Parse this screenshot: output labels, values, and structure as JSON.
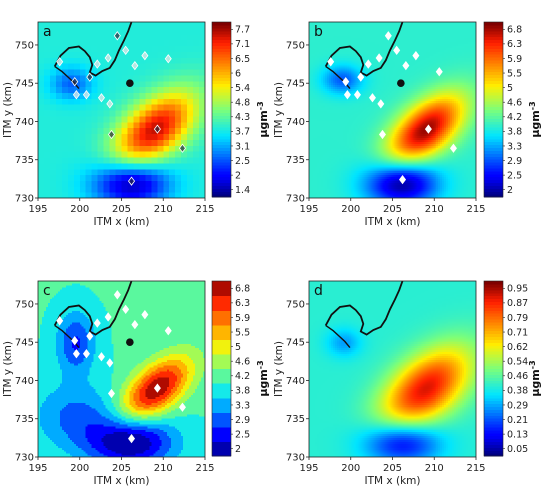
{
  "chart_data": [
    {
      "type": "heatmap",
      "panel_label": "a",
      "style": "blocky",
      "xlabel": "ITM x (km)",
      "ylabel": "ITM y (km)",
      "xlim": [
        195,
        215
      ],
      "ylim": [
        730,
        753
      ],
      "xticks": [
        "195",
        "200",
        "205",
        "210",
        "215"
      ],
      "yticks": [
        "730",
        "735",
        "740",
        "745",
        "750"
      ],
      "colorbar": {
        "unit": "μgm",
        "unit_exp": "-3",
        "ticks": [
          "7.7",
          "7.1",
          "6.5",
          "6",
          "5.4",
          "4.8",
          "4.3",
          "3.7",
          "3.1",
          "2.5",
          "2",
          "1.4"
        ],
        "min": 1.1,
        "max": 8.0
      },
      "background": 3.8,
      "features": [
        {
          "x": 209,
          "y": 739,
          "amp": 3.8,
          "sx": 4.2,
          "sy": 2.3,
          "rot": -45
        },
        {
          "x": 206,
          "y": 732,
          "amp": -2.6,
          "sx": 3.2,
          "sy": 2.2,
          "rot": 0
        },
        {
          "x": 199,
          "y": 745,
          "amp": -1.2,
          "sx": 1.8,
          "sy": 1.5,
          "rot": 0
        }
      ],
      "stations": [
        {
          "x": 206,
          "y": 745,
          "type": "site"
        },
        {
          "x": 209.3,
          "y": 739,
          "type": "diamond",
          "shade": "dark"
        },
        {
          "x": 212.3,
          "y": 736.5,
          "type": "diamond",
          "shade": "dark"
        },
        {
          "x": 206.2,
          "y": 732.2,
          "type": "diamond",
          "shade": "dark"
        },
        {
          "x": 203.8,
          "y": 738.3,
          "type": "diamond",
          "shade": "dark"
        },
        {
          "x": 204.5,
          "y": 751.2,
          "type": "diamond",
          "shade": "dark"
        },
        {
          "x": 205.5,
          "y": 749.3,
          "type": "diamond",
          "shade": "light"
        },
        {
          "x": 206.6,
          "y": 747.3,
          "type": "diamond",
          "shade": "light"
        },
        {
          "x": 203.4,
          "y": 748.3,
          "type": "diamond",
          "shade": "light"
        },
        {
          "x": 202.1,
          "y": 747.5,
          "type": "diamond",
          "shade": "light"
        },
        {
          "x": 202.6,
          "y": 743.1,
          "type": "diamond",
          "shade": "light"
        },
        {
          "x": 203.6,
          "y": 742.3,
          "type": "diamond",
          "shade": "light"
        },
        {
          "x": 200.8,
          "y": 743.5,
          "type": "diamond",
          "shade": "light"
        },
        {
          "x": 199.4,
          "y": 745.2,
          "type": "diamond",
          "shade": "dark"
        },
        {
          "x": 199.6,
          "y": 743.5,
          "type": "diamond",
          "shade": "light"
        },
        {
          "x": 197.6,
          "y": 747.8,
          "type": "diamond",
          "shade": "light"
        },
        {
          "x": 201.2,
          "y": 745.8,
          "type": "diamond",
          "shade": "dark"
        },
        {
          "x": 207.8,
          "y": 748.6,
          "type": "diamond",
          "shade": "light"
        },
        {
          "x": 210.6,
          "y": 748.2,
          "type": "diamond",
          "shade": "light"
        }
      ]
    },
    {
      "type": "heatmap",
      "panel_label": "b",
      "style": "smooth",
      "xlabel": "ITM x (km)",
      "ylabel": "ITM y (km)",
      "xlim": [
        195,
        215
      ],
      "ylim": [
        730,
        753
      ],
      "xticks": [
        "195",
        "200",
        "205",
        "210",
        "215"
      ],
      "yticks": [
        "730",
        "735",
        "740",
        "745",
        "750"
      ],
      "colorbar": {
        "unit": "μgm",
        "unit_exp": "-3",
        "ticks": [
          "6.8",
          "6.3",
          "5.9",
          "5.5",
          "5",
          "4.6",
          "4.2",
          "3.8",
          "3.3",
          "2.9",
          "2.5",
          "2"
        ],
        "min": 1.8,
        "max": 7.0
      },
      "background": 3.9,
      "features": [
        {
          "x": 209,
          "y": 739,
          "amp": 3.0,
          "sx": 4.0,
          "sy": 2.1,
          "rot": -45
        },
        {
          "x": 206,
          "y": 732,
          "amp": -2.1,
          "sx": 3.0,
          "sy": 2.1,
          "rot": 0
        },
        {
          "x": 199,
          "y": 745.5,
          "amp": -1.0,
          "sx": 1.7,
          "sy": 1.3,
          "rot": 0
        }
      ],
      "stations": [
        {
          "x": 206,
          "y": 745,
          "type": "site"
        },
        {
          "x": 209.3,
          "y": 739,
          "type": "diamond",
          "shade": "white"
        },
        {
          "x": 212.3,
          "y": 736.5,
          "type": "diamond",
          "shade": "white"
        },
        {
          "x": 206.2,
          "y": 732.4,
          "type": "diamond",
          "shade": "white"
        },
        {
          "x": 203.8,
          "y": 738.3,
          "type": "diamond",
          "shade": "white"
        },
        {
          "x": 204.5,
          "y": 751.2,
          "type": "diamond",
          "shade": "white"
        },
        {
          "x": 205.5,
          "y": 749.3,
          "type": "diamond",
          "shade": "white"
        },
        {
          "x": 206.6,
          "y": 747.3,
          "type": "diamond",
          "shade": "white"
        },
        {
          "x": 203.4,
          "y": 748.3,
          "type": "diamond",
          "shade": "white"
        },
        {
          "x": 202.1,
          "y": 747.5,
          "type": "diamond",
          "shade": "white"
        },
        {
          "x": 202.6,
          "y": 743.1,
          "type": "diamond",
          "shade": "white"
        },
        {
          "x": 203.6,
          "y": 742.3,
          "type": "diamond",
          "shade": "white"
        },
        {
          "x": 200.8,
          "y": 743.5,
          "type": "diamond",
          "shade": "white"
        },
        {
          "x": 199.4,
          "y": 745.2,
          "type": "diamond",
          "shade": "white"
        },
        {
          "x": 199.6,
          "y": 743.5,
          "type": "diamond",
          "shade": "white"
        },
        {
          "x": 197.6,
          "y": 747.8,
          "type": "diamond",
          "shade": "white"
        },
        {
          "x": 201.2,
          "y": 745.8,
          "type": "diamond",
          "shade": "white"
        },
        {
          "x": 207.8,
          "y": 748.6,
          "type": "diamond",
          "shade": "white"
        },
        {
          "x": 210.6,
          "y": 746.5,
          "type": "diamond",
          "shade": "white"
        }
      ]
    },
    {
      "type": "heatmap",
      "panel_label": "c",
      "style": "contour",
      "xlabel": "ITM x (km)",
      "ylabel": "ITM y (km)",
      "xlim": [
        195,
        215
      ],
      "ylim": [
        730,
        753
      ],
      "xticks": [
        "195",
        "200",
        "205",
        "210",
        "215"
      ],
      "yticks": [
        "730",
        "735",
        "740",
        "745",
        "750"
      ],
      "colorbar": {
        "unit": "μgm",
        "unit_exp": "-3",
        "ticks": [
          "6.8",
          "6.3",
          "5.9",
          "5.5",
          "5",
          "4.6",
          "4.2",
          "3.8",
          "3.3",
          "2.9",
          "2.5",
          "2"
        ],
        "min": 1.8,
        "max": 7.0,
        "discrete": true
      },
      "background": 4.0,
      "features": [
        {
          "x": 209.2,
          "y": 739,
          "amp": 3.0,
          "sx": 3.6,
          "sy": 1.9,
          "rot": -45
        },
        {
          "x": 206,
          "y": 732,
          "amp": -2.3,
          "sx": 3.6,
          "sy": 2.3,
          "rot": 0
        },
        {
          "x": 199.5,
          "y": 745,
          "amp": -1.4,
          "sx": 1.6,
          "sy": 2.8,
          "rot": 0
        },
        {
          "x": 199.5,
          "y": 735.5,
          "amp": -1.0,
          "sx": 3.5,
          "sy": 3.0,
          "rot": 0
        }
      ],
      "stations": [
        {
          "x": 206,
          "y": 745,
          "type": "site"
        },
        {
          "x": 209.3,
          "y": 739,
          "type": "diamond",
          "shade": "white"
        },
        {
          "x": 212.3,
          "y": 736.5,
          "type": "diamond",
          "shade": "white"
        },
        {
          "x": 206.2,
          "y": 732.4,
          "type": "diamond",
          "shade": "white"
        },
        {
          "x": 203.8,
          "y": 738.3,
          "type": "diamond",
          "shade": "white"
        },
        {
          "x": 204.5,
          "y": 751.2,
          "type": "diamond",
          "shade": "white"
        },
        {
          "x": 205.5,
          "y": 749.3,
          "type": "diamond",
          "shade": "white"
        },
        {
          "x": 206.6,
          "y": 747.3,
          "type": "diamond",
          "shade": "white"
        },
        {
          "x": 203.4,
          "y": 748.3,
          "type": "diamond",
          "shade": "white"
        },
        {
          "x": 202.1,
          "y": 747.5,
          "type": "diamond",
          "shade": "white"
        },
        {
          "x": 202.6,
          "y": 743.1,
          "type": "diamond",
          "shade": "white"
        },
        {
          "x": 203.6,
          "y": 742.3,
          "type": "diamond",
          "shade": "white"
        },
        {
          "x": 200.8,
          "y": 743.5,
          "type": "diamond",
          "shade": "white"
        },
        {
          "x": 199.4,
          "y": 745.2,
          "type": "diamond",
          "shade": "white"
        },
        {
          "x": 199.6,
          "y": 743.5,
          "type": "diamond",
          "shade": "white"
        },
        {
          "x": 197.6,
          "y": 747.8,
          "type": "diamond",
          "shade": "white"
        },
        {
          "x": 201.2,
          "y": 745.8,
          "type": "diamond",
          "shade": "white"
        },
        {
          "x": 207.8,
          "y": 748.6,
          "type": "diamond",
          "shade": "white"
        },
        {
          "x": 210.6,
          "y": 746.5,
          "type": "diamond",
          "shade": "white"
        }
      ]
    },
    {
      "type": "heatmap",
      "panel_label": "d",
      "style": "smooth",
      "xlabel": "ITM x (km)",
      "ylabel": "ITM y (km)",
      "xlim": [
        195,
        215
      ],
      "ylim": [
        730,
        753
      ],
      "xticks": [
        "195",
        "200",
        "205",
        "210",
        "215"
      ],
      "yticks": [
        "730",
        "735",
        "740",
        "745",
        "750"
      ],
      "colorbar": {
        "unit": "μgm",
        "unit_exp": "-3",
        "ticks": [
          "0.95",
          "0.87",
          "0.79",
          "0.71",
          "0.62",
          "0.54",
          "0.46",
          "0.38",
          "0.29",
          "0.21",
          "0.13",
          "0.05"
        ],
        "min": 0.0,
        "max": 1.0
      },
      "background": 0.4,
      "features": [
        {
          "x": 209,
          "y": 739,
          "amp": 0.52,
          "sx": 4.6,
          "sy": 2.6,
          "rot": -45
        },
        {
          "x": 206,
          "y": 732,
          "amp": -0.32,
          "sx": 3.2,
          "sy": 2.0,
          "rot": 0
        },
        {
          "x": 199.2,
          "y": 745,
          "amp": -0.12,
          "sx": 1.5,
          "sy": 1.3,
          "rot": 0
        }
      ],
      "stations": []
    }
  ]
}
